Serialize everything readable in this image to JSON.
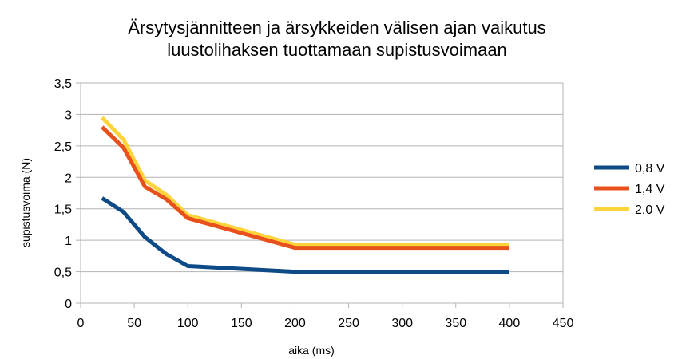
{
  "chart_data": {
    "type": "line",
    "title": "Ärsytysjännitteen ja ärsykkeiden välisen ajan vaikutus",
    "subtitle": "luustolihaksen tuottamaan supistusvoimaan",
    "xlabel": "aika (ms)",
    "ylabel": "supistusvoima (N)",
    "xlim": [
      0,
      450
    ],
    "ylim": [
      0,
      3.5
    ],
    "x_ticks": [
      0,
      50,
      100,
      150,
      200,
      250,
      300,
      350,
      400,
      450
    ],
    "y_ticks": [
      0,
      0.5,
      1,
      1.5,
      2,
      2.5,
      3,
      3.5
    ],
    "x_tick_labels": [
      "0",
      "50",
      "100",
      "150",
      "200",
      "250",
      "300",
      "350",
      "400",
      "450"
    ],
    "y_tick_labels": [
      "0",
      "0,5",
      "1",
      "1,5",
      "2",
      "2,5",
      "3",
      "3,5"
    ],
    "grid": "horizontal",
    "legend_position": "right",
    "x": [
      20,
      40,
      60,
      80,
      100,
      200,
      400
    ],
    "series": [
      {
        "name": "0,8 V",
        "color": "#0e4a86",
        "values": [
          1.67,
          1.45,
          1.05,
          0.78,
          0.59,
          0.5,
          0.5
        ]
      },
      {
        "name": "1,4 V",
        "color": "#e8511c",
        "values": [
          2.8,
          2.47,
          1.85,
          1.65,
          1.35,
          0.88,
          0.88
        ]
      },
      {
        "name": "2,0 V",
        "color": "#ffd33a",
        "values": [
          2.95,
          2.6,
          1.95,
          1.72,
          1.4,
          0.93,
          0.93
        ]
      }
    ]
  }
}
